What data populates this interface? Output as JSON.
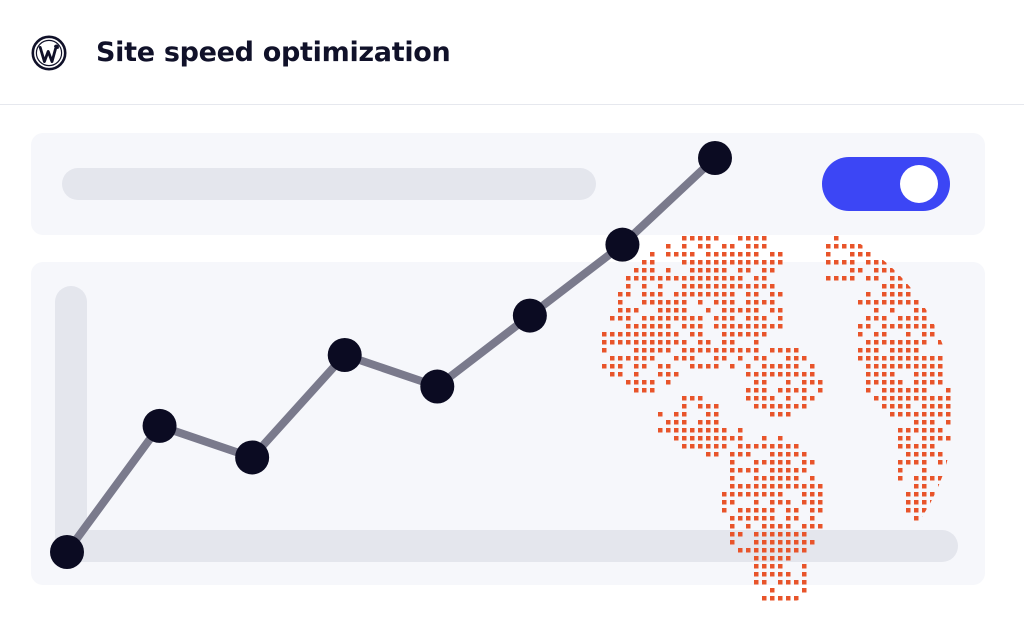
{
  "header": {
    "title": "Site speed optimization",
    "logo_icon": "wordpress-logo-icon"
  },
  "toggle": {
    "state": "on",
    "color": "#3c46f5"
  },
  "graphic": {
    "globe_icon": "dotted-globe-icon",
    "globe_color": "#e8542a",
    "trend_line_color": "#7a7a8c",
    "point_color": "#0b0b22"
  },
  "chart_data": {
    "type": "line",
    "x": [
      1,
      2,
      3,
      4,
      5,
      6,
      7,
      8
    ],
    "values": [
      0.0,
      0.32,
      0.24,
      0.5,
      0.42,
      0.6,
      0.78,
      1.0
    ],
    "ylim": [
      0,
      1
    ],
    "title": "",
    "xlabel": "",
    "ylabel": ""
  }
}
